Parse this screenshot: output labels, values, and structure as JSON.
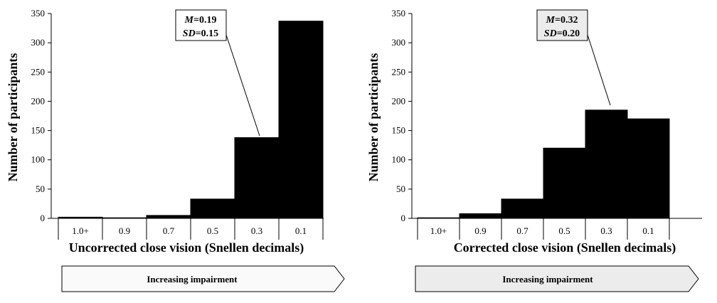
{
  "chart_data": [
    {
      "type": "bar",
      "categories": [
        "1.0+",
        "0.9",
        "0.7",
        "0.5",
        "0.3",
        "0.1"
      ],
      "values": [
        2,
        1,
        5,
        33,
        138,
        337
      ],
      "ylim": [
        0,
        350
      ],
      "yticks": [
        0,
        50,
        100,
        150,
        200,
        250,
        300,
        350
      ],
      "title": "",
      "xlabel": "Uncorrected close vision (Snellen decimals)",
      "ylabel": "Number of participants",
      "grid": false,
      "annotation": {
        "m_label": "M",
        "m_value": "=0.19",
        "sd_label": "SD",
        "sd_value": "=0.15"
      },
      "arrow_label": "Increasing impairment",
      "colors": {
        "bar": "#000000",
        "box": "#ffffff"
      }
    },
    {
      "type": "bar",
      "categories": [
        "1.0+",
        "0.9",
        "0.7",
        "0.5",
        "0.3",
        "0.1"
      ],
      "values": [
        1,
        8,
        33,
        120,
        185,
        170
      ],
      "ylim": [
        0,
        350
      ],
      "yticks": [
        0,
        50,
        100,
        150,
        200,
        250,
        300,
        350
      ],
      "title": "",
      "xlabel": "Corrected close vision (Snellen decimals)",
      "ylabel": "Number of participants",
      "grid": false,
      "annotation": {
        "m_label": "M",
        "m_value": "=0.32",
        "sd_label": "SD",
        "sd_value": "=0.20"
      },
      "arrow_label": "Increasing impairment",
      "colors": {
        "bar": "#000000",
        "box": "#ececec"
      }
    }
  ]
}
